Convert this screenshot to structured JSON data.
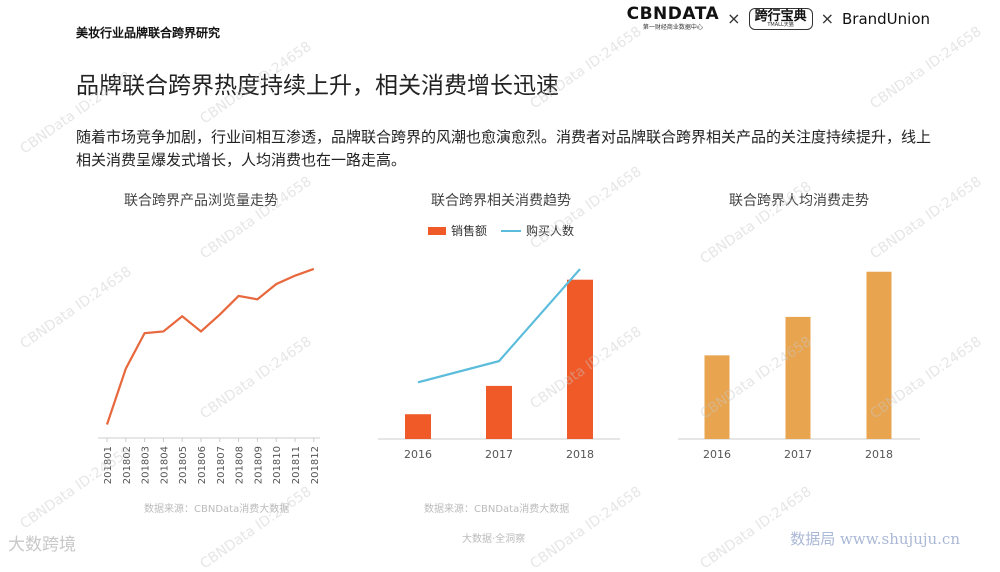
{
  "header": {
    "report_label": "美妆行业品牌联合跨界研究",
    "logo_cbn": "CBNDATA",
    "logo_cbn_sub": "第一财经商业数据中心",
    "logo_times": "×",
    "logo_tmall": "跨行宝典",
    "logo_tmall_sub": "TMALL天猫",
    "logo_times2": "×",
    "logo_brand": "BrandUnion"
  },
  "page_title": "品牌联合跨界热度持续上升，相关消费增长迅速",
  "summary": "随着市场竞争加剧，行业间相互渗透，品牌联合跨界的风潮也愈演愈烈。消费者对品牌联合跨界相关产品的关注度持续提升，线上相关消费呈爆发式增长，人均消费也在一路走高。",
  "watermark": "CBNData ID:24658",
  "footer": {
    "left_mark": "大数跨境",
    "center": "大数据·全洞察",
    "right": "数据局 www.shujuju.cn"
  },
  "colors": {
    "line_orange": "#e8673c",
    "bar_red": "#f05a28",
    "line_blue": "#5bbcdc",
    "bar_gold": "#e8a44e",
    "axis": "#cccccc"
  },
  "chart_data": [
    {
      "type": "line",
      "title": "联合跨界产品浏览量走势",
      "source": "数据来源：CBNData消费大数据",
      "categories": [
        "201801",
        "201802",
        "201803",
        "201804",
        "201805",
        "201806",
        "201807",
        "201808",
        "201809",
        "201810",
        "201811",
        "201812"
      ],
      "values": [
        8,
        41,
        62,
        63,
        72,
        63,
        73,
        84,
        82,
        91,
        96,
        100
      ],
      "ylim": [
        0,
        110
      ],
      "grid": false
    },
    {
      "type": "bar",
      "title": "联合跨界相关消费趋势",
      "source": "数据来源：CBNData消费大数据",
      "categories": [
        "2016",
        "2017",
        "2018"
      ],
      "series": [
        {
          "name": "销售额",
          "values": [
            14,
            30,
            90
          ]
        },
        {
          "name": "购买人数",
          "values": [
            32,
            44,
            96
          ]
        }
      ],
      "ylim": [
        0,
        100
      ],
      "legend": "top",
      "grid": false
    },
    {
      "type": "bar",
      "title": "联合跨界人均消费走势",
      "categories": [
        "2016",
        "2017",
        "2018"
      ],
      "values": [
        50,
        73,
        100
      ],
      "ylim": [
        0,
        110
      ],
      "grid": false
    }
  ]
}
